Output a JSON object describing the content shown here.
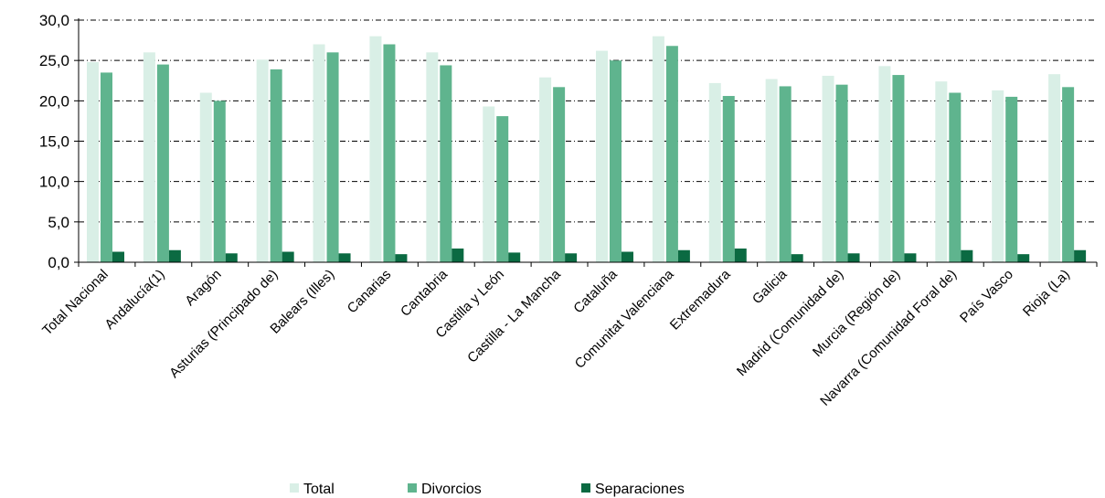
{
  "chart_data": {
    "type": "bar",
    "categories": [
      "Total Nacional",
      "Andalucía(1)",
      "Aragón",
      "Asturias (Principado de)",
      "Balears (Illes)",
      "Canarias",
      "Cantabria",
      "Castilla y León",
      "Castilla - La Mancha",
      "Cataluña",
      "Comunitat Valenciana",
      "Extremadura",
      "Galicia",
      "Madrid (Comunidad de)",
      "Murcia (Región de)",
      "Navarra (Comunidad Foral de)",
      "País Vasco",
      "Rioja (La)"
    ],
    "series": [
      {
        "name": "Total",
        "color": "#d9efe6",
        "values": [
          24.8,
          26.0,
          21.0,
          25.1,
          27.0,
          28.0,
          26.0,
          19.3,
          22.9,
          26.2,
          28.0,
          22.2,
          22.7,
          23.1,
          24.3,
          22.4,
          21.3,
          23.3
        ]
      },
      {
        "name": "Divorcios",
        "color": "#5fb48e",
        "values": [
          23.5,
          24.5,
          20.0,
          23.9,
          26.0,
          27.0,
          24.4,
          18.1,
          21.7,
          25.0,
          26.8,
          20.6,
          21.8,
          22.0,
          23.2,
          21.0,
          20.5,
          21.7
        ]
      },
      {
        "name": "Separaciones",
        "color": "#0b6a42",
        "values": [
          1.3,
          1.5,
          1.1,
          1.3,
          1.1,
          1.0,
          1.7,
          1.2,
          1.1,
          1.3,
          1.5,
          1.7,
          1.0,
          1.1,
          1.1,
          1.5,
          1.0,
          1.5
        ]
      }
    ],
    "yticks": [
      "0,0",
      "5,0",
      "10,0",
      "15,0",
      "20,0",
      "25,0",
      "30,0"
    ],
    "ylim": [
      0,
      30
    ],
    "grid": true,
    "legend_position": "bottom",
    "title": "",
    "xlabel": "",
    "ylabel": ""
  }
}
